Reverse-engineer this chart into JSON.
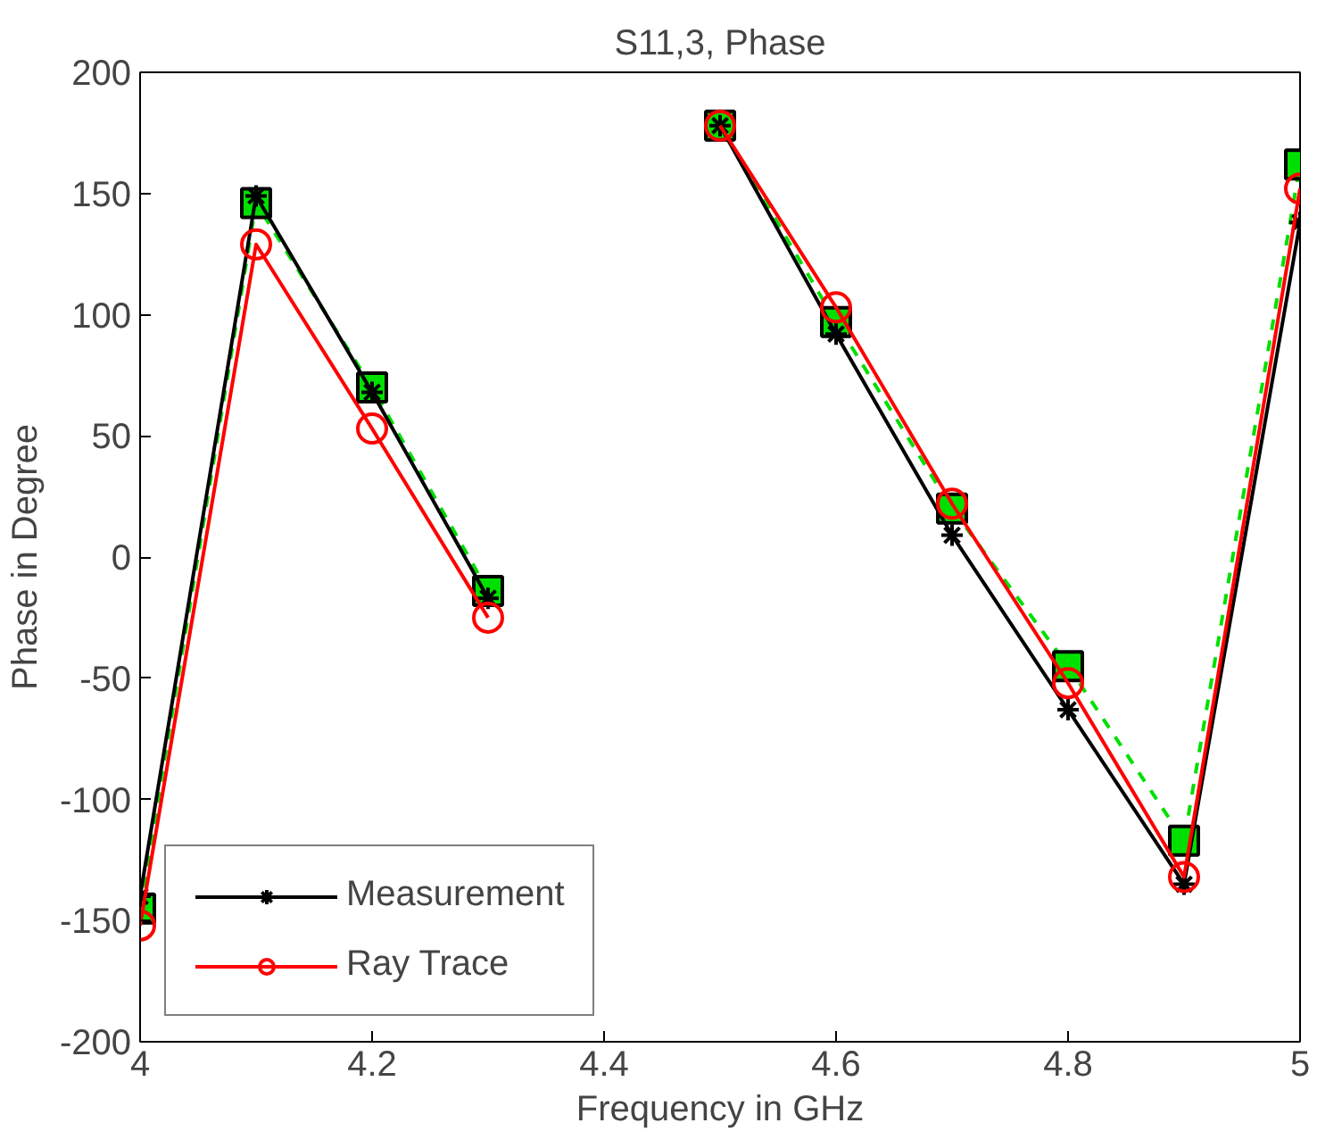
{
  "chart_data": {
    "type": "line",
    "title": "S11,3, Phase",
    "xlabel": "Frequency in GHz",
    "ylabel": "Phase in Degree",
    "x": [
      4.0,
      4.1,
      4.2,
      4.3,
      4.4,
      4.5,
      4.6,
      4.7,
      4.8,
      4.9,
      5.0
    ],
    "series": [
      {
        "color": "#00e000",
        "marker": "square",
        "line_style": "dashed",
        "values": [
          -145,
          146,
          70,
          -14,
          null,
          178,
          97,
          20,
          -45,
          -117,
          162
        ]
      },
      {
        "name": "Measurement",
        "color": "#000000",
        "marker": "cross",
        "line_style": "solid",
        "values": [
          -140,
          149,
          68,
          -17,
          null,
          178,
          92,
          9,
          -63,
          -135,
          138
        ]
      },
      {
        "name": "Ray Trace",
        "color": "#ff0000",
        "marker": "circle",
        "line_style": "solid",
        "values": [
          -152,
          129,
          53,
          -25,
          null,
          178,
          103,
          22,
          -52,
          -132,
          152
        ]
      }
    ],
    "xlim": [
      4,
      5
    ],
    "ylim": [
      -200,
      200
    ],
    "xticks": [
      4,
      4.2,
      4.4,
      4.6,
      4.8,
      5
    ],
    "yticks": [
      -200,
      -150,
      -100,
      -50,
      0,
      50,
      100,
      150,
      200
    ],
    "grid": false,
    "legend": "bottom left"
  }
}
